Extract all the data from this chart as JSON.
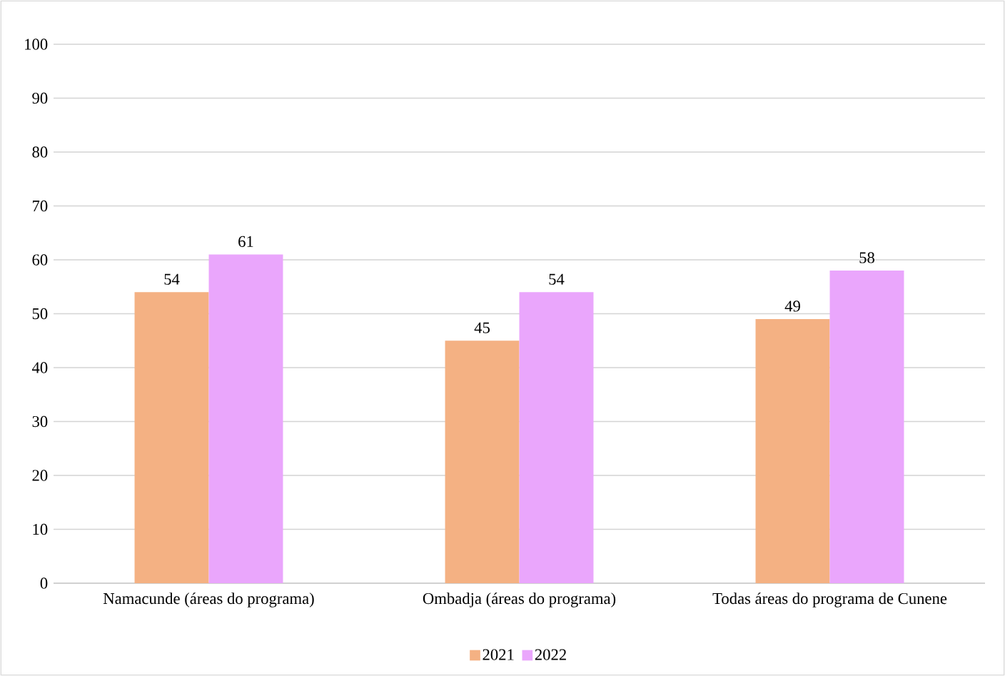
{
  "chart_data": {
    "type": "bar",
    "categories": [
      "Namacunde (áreas do programa)",
      "Ombadja (áreas do programa)",
      "Todas áreas do programa de Cunene"
    ],
    "series": [
      {
        "name": "2021",
        "color": "#f4b183",
        "values": [
          54,
          45,
          49
        ]
      },
      {
        "name": "2022",
        "color": "#eaa6fc",
        "values": [
          61,
          54,
          58
        ]
      }
    ],
    "ylim": [
      0,
      100
    ],
    "yticks": [
      0,
      10,
      20,
      30,
      40,
      50,
      60,
      70,
      80,
      90,
      100
    ],
    "grid": "y",
    "legend": "bottom",
    "data_labels": true
  }
}
